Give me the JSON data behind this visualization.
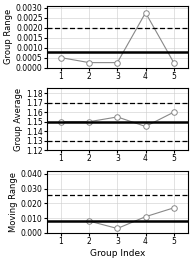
{
  "chart1": {
    "title": "Group Range",
    "x": [
      1,
      2,
      3,
      4,
      5
    ],
    "y": [
      0.0005,
      0.00025,
      0.00025,
      0.00275,
      0.00025
    ],
    "solid_line": 0.0008,
    "dashed_line": 0.002,
    "ylim": [
      0.0,
      0.0031
    ],
    "yticks": [
      0.0,
      0.0005,
      0.001,
      0.0015,
      0.002,
      0.0025,
      0.003
    ],
    "yticklabels": [
      "0.0000",
      "0.0005",
      "0.0010",
      "0.0015",
      "0.0020",
      "0.0025",
      "0.0030"
    ]
  },
  "chart2": {
    "title": "Group Average",
    "x": [
      1,
      2,
      3,
      4,
      5
    ],
    "y": [
      1.15,
      1.15,
      1.155,
      1.145,
      1.16
    ],
    "solid_line": 1.1502,
    "dashed_upper": 1.17,
    "dashed_lower": 1.13,
    "ylim": [
      1.12,
      1.185
    ],
    "yticks": [
      1.12,
      1.13,
      1.14,
      1.15,
      1.16,
      1.17,
      1.18
    ],
    "yticklabels": [
      "1.12",
      "1.13",
      "1.14",
      "1.15",
      "1.16",
      "1.17",
      "1.18"
    ]
  },
  "chart3": {
    "title": "Moving Range",
    "x": [
      2,
      3,
      4,
      5
    ],
    "y": [
      0.008,
      0.003,
      0.011,
      0.017
    ],
    "solid_line": 0.008,
    "dashed_line": 0.026,
    "ylim": [
      0.0,
      0.042
    ],
    "yticks": [
      0.0,
      0.01,
      0.02,
      0.03,
      0.04
    ],
    "yticklabels": [
      "0.000",
      "0.010",
      "0.020",
      "0.030",
      "0.040"
    ]
  },
  "xlabel": "Group Index",
  "xlim": [
    0.5,
    5.5
  ],
  "xticks": [
    1,
    2,
    3,
    4,
    5
  ],
  "line_color": "#888888",
  "marker_color": "white",
  "marker_edge": "#888888",
  "solid_color": "black",
  "dashed_color": "black",
  "bg_color": "white",
  "fontsize_label": 6,
  "fontsize_tick": 5.5,
  "fontsize_xlabel": 6.5
}
